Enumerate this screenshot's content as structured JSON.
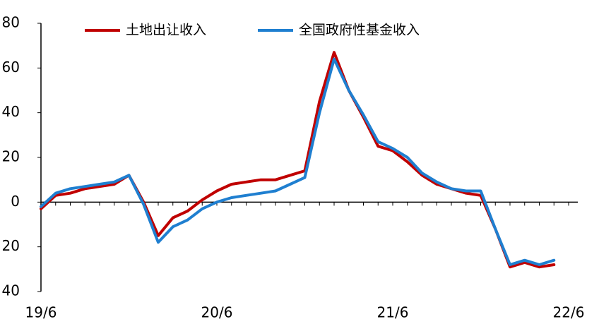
{
  "chart_data": {
    "type": "line",
    "categories": [
      "19/6",
      null,
      null,
      null,
      null,
      null,
      null,
      null,
      null,
      null,
      null,
      null,
      "20/6",
      null,
      null,
      null,
      null,
      null,
      null,
      null,
      null,
      null,
      null,
      null,
      "21/6",
      null,
      null,
      null,
      null,
      null,
      null,
      null,
      null,
      null,
      null,
      null,
      "22/6"
    ],
    "series": [
      {
        "name": "土地出让收入",
        "color": "#c00000",
        "values": [
          -3,
          3,
          4,
          6,
          7,
          8,
          12,
          0,
          -15,
          -7,
          -4,
          1,
          5,
          8,
          9,
          10,
          10,
          12,
          14,
          45,
          67,
          50,
          38,
          25,
          23,
          18,
          12,
          8,
          6,
          4,
          3,
          -12,
          -29,
          -27,
          -29,
          -28,
          null
        ]
      },
      {
        "name": "全国政府性基金收入",
        "color": "#1f7fd0",
        "values": [
          -2,
          4,
          6,
          7,
          8,
          9,
          12,
          -1,
          -18,
          -11,
          -8,
          -3,
          0,
          2,
          3,
          4,
          5,
          8,
          11,
          40,
          64,
          50,
          39,
          27,
          24,
          20,
          13,
          9,
          6,
          5,
          5,
          -12,
          -28,
          -26,
          -28,
          -26,
          null
        ]
      }
    ],
    "ylim": [
      -40,
      80
    ],
    "yticks": [
      {
        "value": -40,
        "label": "40"
      },
      {
        "value": -20,
        "label": "20"
      },
      0,
      20,
      40,
      60,
      80
    ],
    "legend": "top"
  }
}
